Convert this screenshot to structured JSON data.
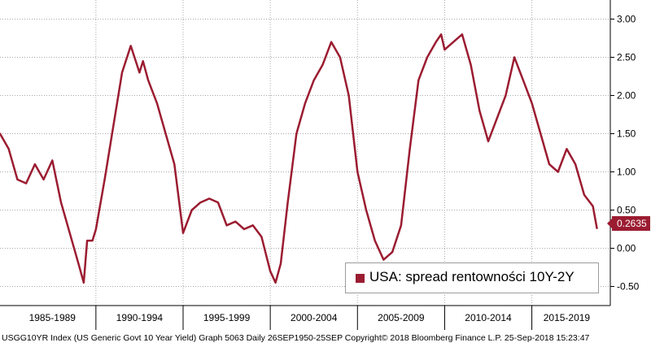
{
  "chart_data": {
    "type": "line",
    "title": "",
    "xlabel": "",
    "ylabel": "",
    "x_tick_labels": [
      "1985-1989",
      "1990-1994",
      "1995-1999",
      "2000-2004",
      "2005-2009",
      "2010-2014",
      "2015-2019"
    ],
    "y_ticks": [
      -0.5,
      0,
      0.5,
      1.0,
      1.5,
      2.0,
      2.5,
      3.0
    ],
    "y_tick_labels": [
      "-0.50",
      "0.00",
      "0.50",
      "1.00",
      "1.50",
      "2.00",
      "2.50",
      "3.00"
    ],
    "xlim": [
      1984.5,
      2019.5
    ],
    "ylim": [
      -0.75,
      3.25
    ],
    "grid": true,
    "legend_position": "bottom-right",
    "series": [
      {
        "name": "USA: spread rentowności 10Y-2Y",
        "color": "#9b1c31",
        "x": [
          1984.5,
          1985.0,
          1985.5,
          1986.0,
          1986.5,
          1987.0,
          1987.5,
          1988.0,
          1988.5,
          1989.0,
          1989.3,
          1989.5,
          1989.8,
          1990.0,
          1990.5,
          1991.0,
          1991.5,
          1992.0,
          1992.5,
          1992.7,
          1993.0,
          1993.5,
          1994.0,
          1994.5,
          1995.0,
          1995.5,
          1996.0,
          1996.5,
          1997.0,
          1997.5,
          1998.0,
          1998.5,
          1999.0,
          1999.5,
          2000.0,
          2000.3,
          2000.6,
          2001.0,
          2001.5,
          2002.0,
          2002.5,
          2003.0,
          2003.5,
          2004.0,
          2004.5,
          2005.0,
          2005.5,
          2006.0,
          2006.5,
          2007.0,
          2007.5,
          2008.0,
          2008.5,
          2009.0,
          2009.5,
          2009.8,
          2010.0,
          2010.5,
          2011.0,
          2011.5,
          2012.0,
          2012.5,
          2013.0,
          2013.5,
          2014.0,
          2014.5,
          2015.0,
          2015.5,
          2016.0,
          2016.5,
          2017.0,
          2017.5,
          2018.0,
          2018.5,
          2018.73
        ],
        "y": [
          1.5,
          1.3,
          0.9,
          0.85,
          1.1,
          0.9,
          1.15,
          0.6,
          0.2,
          -0.2,
          -0.45,
          0.1,
          0.1,
          0.25,
          0.9,
          1.6,
          2.3,
          2.65,
          2.3,
          2.45,
          2.2,
          1.9,
          1.5,
          1.1,
          0.2,
          0.5,
          0.6,
          0.65,
          0.6,
          0.3,
          0.35,
          0.25,
          0.3,
          0.15,
          -0.3,
          -0.45,
          -0.2,
          0.6,
          1.5,
          1.9,
          2.2,
          2.4,
          2.7,
          2.5,
          2.0,
          1.0,
          0.5,
          0.1,
          -0.15,
          -0.05,
          0.3,
          1.3,
          2.2,
          2.5,
          2.7,
          2.8,
          2.6,
          2.7,
          2.8,
          2.4,
          1.8,
          1.4,
          1.7,
          2.0,
          2.5,
          2.2,
          1.9,
          1.5,
          1.1,
          1.0,
          1.3,
          1.1,
          0.7,
          0.55,
          0.2635
        ]
      }
    ],
    "last_value_label": "0.2635"
  },
  "footer": {
    "text": "USGG10YR Index (US Generic Govt 10 Year Yield) Graph 5063  Daily 26SEP1950-25SEP  Copyright© 2018 Bloomberg Finance L.P.    25-Sep-2018 15:23:47"
  }
}
